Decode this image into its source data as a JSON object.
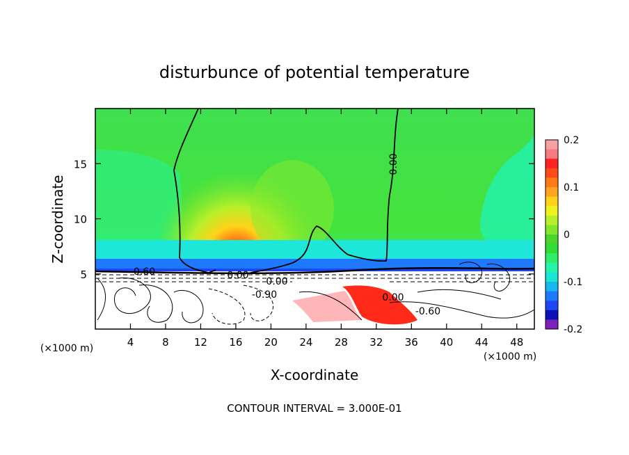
{
  "chart_data": {
    "type": "heatmap",
    "title": "disturbunce of potential temperature",
    "xlabel": "X-coordinate",
    "ylabel": "Z-coordinate",
    "x_unit_note": "(×1000 m)",
    "y_unit_note": "(×1000 m)",
    "xlim": [
      0,
      50
    ],
    "ylim": [
      0,
      20
    ],
    "x_ticks": [
      "4",
      "8",
      "12",
      "16",
      "20",
      "24",
      "28",
      "32",
      "36",
      "40",
      "44",
      "48"
    ],
    "y_ticks": [
      "5",
      "10",
      "15"
    ],
    "colorbar": {
      "range": [
        -0.2,
        0.2
      ],
      "tick_labels": [
        "0.2",
        "0.1",
        "0",
        "-0.1",
        "-0.2"
      ],
      "colors": [
        "#f7a1a6",
        "#f77a80",
        "#ff2222",
        "#ff4a1a",
        "#ff7a14",
        "#ffa41f",
        "#ffd21a",
        "#eef21d",
        "#b8ef2a",
        "#7fe82c",
        "#4cd62d",
        "#30dd32",
        "#2fef6a",
        "#25f5a8",
        "#1ae6d6",
        "#17b8f0",
        "#1f79ff",
        "#1e46f2",
        "#0b11b8",
        "#7c20b8"
      ]
    },
    "contour_labels": [
      "0.00",
      "0.00",
      "0.00",
      "0.00",
      "-0.60",
      "-0.90",
      "-0.60"
    ],
    "footer": "CONTOUR INTERVAL = 3.000E-01",
    "field": {
      "background_value": 0.0,
      "stable_layer": {
        "z": 5.5,
        "value": -0.06
      },
      "warm_plume": {
        "x": 16.5,
        "z": 6.5,
        "peak": 0.17
      },
      "warm_patch": {
        "x": 31.5,
        "z": 1.5,
        "peak": 0.16
      },
      "upper_cool_band": {
        "x_from": 0,
        "x_to": 6,
        "value": -0.04
      }
    }
  }
}
